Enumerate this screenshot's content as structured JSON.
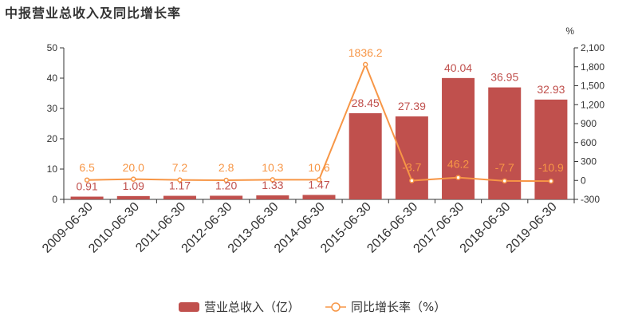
{
  "title": "中报营业总收入及同比增长率",
  "colors": {
    "bar": "#c0504d",
    "line": "#f79646",
    "axis": "#333333",
    "grid": "#e0e0e0"
  },
  "chart_data": {
    "type": "bar",
    "categories": [
      "2009-06-30",
      "2010-06-30",
      "2011-06-30",
      "2012-06-30",
      "2013-06-30",
      "2014-06-30",
      "2015-06-30",
      "2016-06-30",
      "2017-06-30",
      "2018-06-30",
      "2019-06-30"
    ],
    "series": [
      {
        "name": "营业总收入（亿）",
        "type": "bar",
        "axis": "left",
        "values": [
          0.91,
          1.09,
          1.17,
          1.2,
          1.33,
          1.47,
          28.45,
          27.39,
          40.04,
          36.95,
          32.93
        ],
        "labels": [
          "0.91",
          "1.09",
          "1.17",
          "1.20",
          "1.33",
          "1.47",
          "28.45",
          "27.39",
          "40.04",
          "36.95",
          "32.93"
        ]
      },
      {
        "name": "同比增长率（%）",
        "type": "line",
        "axis": "right",
        "values": [
          6.5,
          20.0,
          7.2,
          2.8,
          10.3,
          10.6,
          1836.2,
          -3.7,
          46.2,
          -7.7,
          -10.9
        ],
        "labels": [
          "6.5",
          "20.0",
          "7.2",
          "2.8",
          "10.3",
          "10.6",
          "1836.2",
          "-3.7",
          "46.2",
          "-7.7",
          "-10.9"
        ]
      }
    ],
    "y_left": {
      "min": 0,
      "max": 50,
      "ticks": [
        "0",
        "10",
        "20",
        "30",
        "40",
        "50"
      ]
    },
    "y_right": {
      "min": -300,
      "max": 2100,
      "unit": "%",
      "ticks": [
        "-300",
        "0",
        "300",
        "600",
        "900",
        "1,200",
        "1,500",
        "1,800",
        "2,100"
      ]
    },
    "legend": {
      "position": "bottom"
    }
  }
}
